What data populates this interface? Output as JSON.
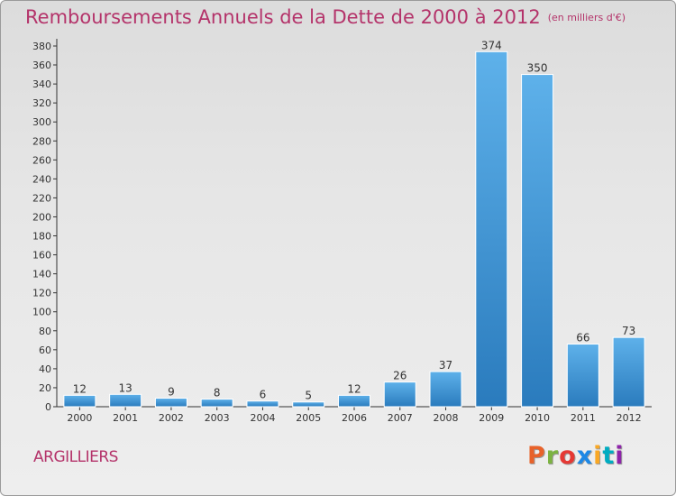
{
  "header": {
    "title": "Remboursements Annuels de la Dette de 2000 à 2012",
    "subtitle": "(en milliers d'€)"
  },
  "footer": {
    "commune": "ARGILLIERS",
    "logo_text": "Proxiti",
    "logo_colors": [
      "#e8622a",
      "#7cb342",
      "#e53935",
      "#1e88e5",
      "#f9a825",
      "#00acc1",
      "#8e24aa"
    ]
  },
  "colors": {
    "title": "#b4336a",
    "bar_light": "#5eb1ea",
    "bar_dark": "#2a7bbd",
    "axis": "#333333"
  },
  "chart_data": {
    "type": "bar",
    "categories": [
      "2000",
      "2001",
      "2002",
      "2003",
      "2004",
      "2005",
      "2006",
      "2007",
      "2008",
      "2009",
      "2010",
      "2011",
      "2012"
    ],
    "values": [
      12,
      13,
      9,
      8,
      6,
      5,
      12,
      26,
      37,
      374,
      350,
      66,
      73
    ],
    "ylim": [
      0,
      380
    ],
    "yticks": [
      0,
      20,
      40,
      60,
      80,
      100,
      120,
      140,
      160,
      180,
      200,
      220,
      240,
      260,
      280,
      300,
      320,
      340,
      360,
      380
    ],
    "grid": false,
    "data_labels": true
  }
}
